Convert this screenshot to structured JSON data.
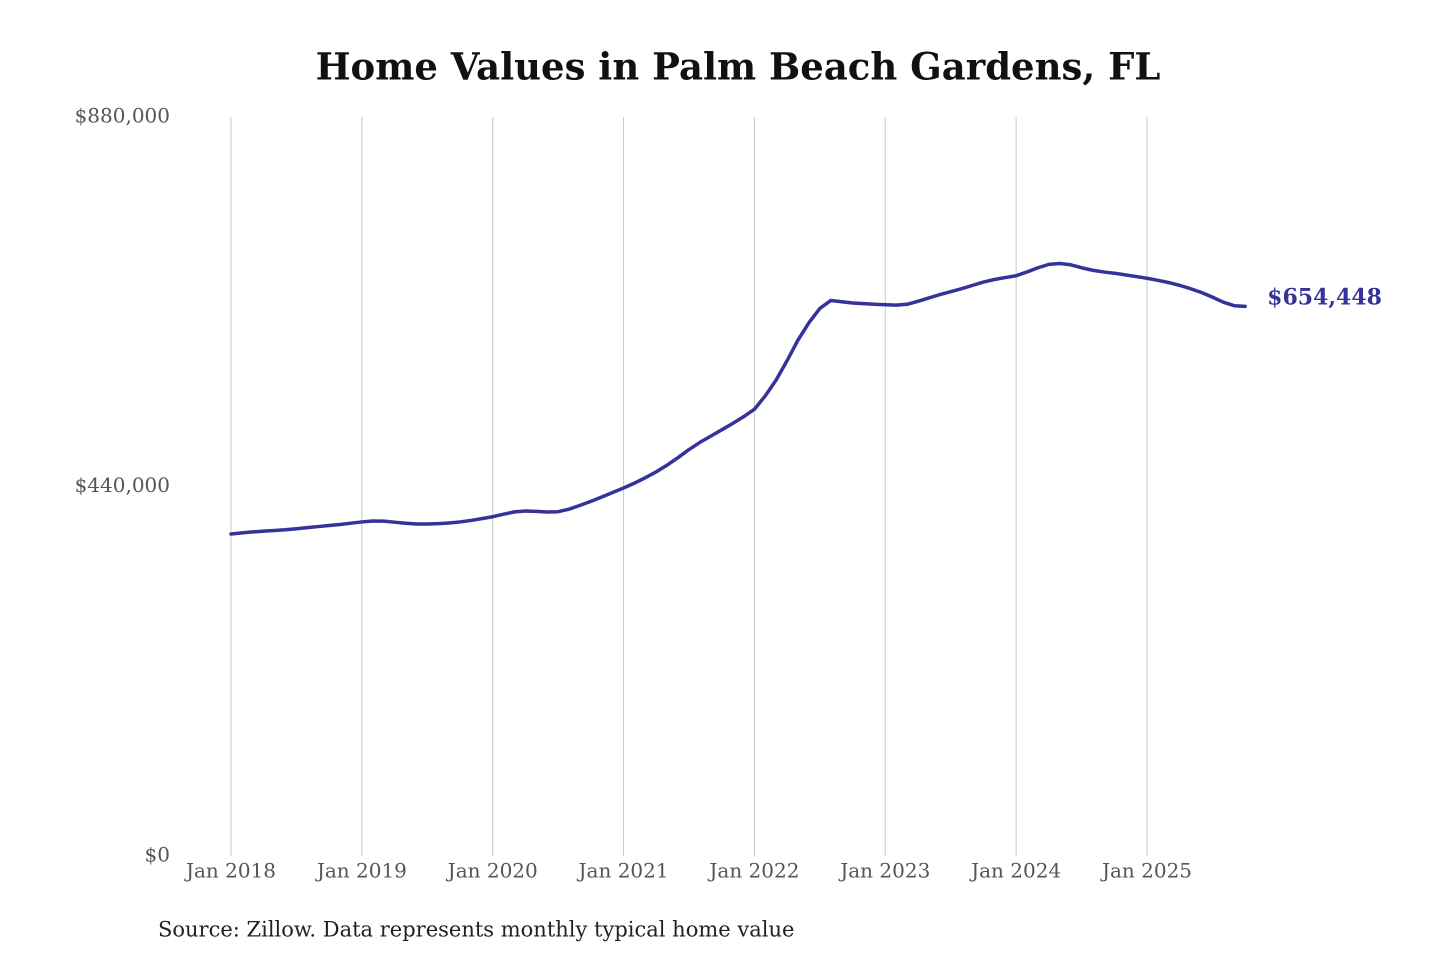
{
  "chart_data": {
    "type": "line",
    "title": "Home Values in Palm Beach Gardens, FL",
    "source": "Source: Zillow. Data represents monthly typical home value",
    "color": "#35339a",
    "end_label": "$654,448",
    "x": [
      "2018-01",
      "2018-02",
      "2018-03",
      "2018-04",
      "2018-05",
      "2018-06",
      "2018-07",
      "2018-08",
      "2018-09",
      "2018-10",
      "2018-11",
      "2018-12",
      "2019-01",
      "2019-02",
      "2019-03",
      "2019-04",
      "2019-05",
      "2019-06",
      "2019-07",
      "2019-08",
      "2019-09",
      "2019-10",
      "2019-11",
      "2019-12",
      "2020-01",
      "2020-02",
      "2020-03",
      "2020-04",
      "2020-05",
      "2020-06",
      "2020-07",
      "2020-08",
      "2020-09",
      "2020-10",
      "2020-11",
      "2020-12",
      "2021-01",
      "2021-02",
      "2021-03",
      "2021-04",
      "2021-05",
      "2021-06",
      "2021-07",
      "2021-08",
      "2021-09",
      "2021-10",
      "2021-11",
      "2021-12",
      "2022-01",
      "2022-02",
      "2022-03",
      "2022-04",
      "2022-05",
      "2022-06",
      "2022-07",
      "2022-08",
      "2022-09",
      "2022-10",
      "2022-11",
      "2022-12",
      "2023-01",
      "2023-02",
      "2023-03",
      "2023-04",
      "2023-05",
      "2023-06",
      "2023-07",
      "2023-08",
      "2023-09",
      "2023-10",
      "2023-11",
      "2023-12",
      "2024-01",
      "2024-02",
      "2024-03",
      "2024-04",
      "2024-05",
      "2024-06",
      "2024-07",
      "2024-08",
      "2024-09",
      "2024-10",
      "2024-11",
      "2024-12",
      "2025-01",
      "2025-02",
      "2025-03",
      "2025-04",
      "2025-05",
      "2025-06",
      "2025-07",
      "2025-08",
      "2025-09",
      "2025-10"
    ],
    "values": [
      383400,
      384800,
      385900,
      386800,
      387600,
      388500,
      389700,
      391000,
      392300,
      393500,
      394700,
      396300,
      397800,
      398900,
      398700,
      397500,
      396200,
      395400,
      395300,
      395800,
      396600,
      397800,
      399600,
      401700,
      404000,
      407000,
      409800,
      410800,
      410400,
      409600,
      410000,
      413000,
      417500,
      422300,
      427500,
      432800,
      438200,
      444000,
      450500,
      457500,
      465500,
      474500,
      484000,
      492500,
      500000,
      507500,
      515000,
      523000,
      532000,
      548000,
      567000,
      590000,
      614500,
      635000,
      652000,
      661500,
      660000,
      658500,
      657800,
      657000,
      656500,
      656000,
      657000,
      660500,
      664500,
      668500,
      672000,
      675500,
      679500,
      683500,
      686500,
      688800,
      691000,
      695500,
      700500,
      704500,
      705500,
      704000,
      700500,
      697500,
      695500,
      694000,
      692000,
      690000,
      688000,
      685500,
      682800,
      679500,
      675500,
      671000,
      665500,
      659500,
      655300,
      654448
    ],
    "ylim": [
      0,
      880000
    ],
    "yticks": [
      {
        "value": 0,
        "label": "$0"
      },
      {
        "value": 440000,
        "label": "$440,000"
      },
      {
        "value": 880000,
        "label": "$880,000"
      }
    ],
    "xticks": [
      {
        "value": "2018-01",
        "label": "Jan 2018"
      },
      {
        "value": "2019-01",
        "label": "Jan 2019"
      },
      {
        "value": "2020-01",
        "label": "Jan 2020"
      },
      {
        "value": "2021-01",
        "label": "Jan 2021"
      },
      {
        "value": "2022-01",
        "label": "Jan 2022"
      },
      {
        "value": "2023-01",
        "label": "Jan 2023"
      },
      {
        "value": "2024-01",
        "label": "Jan 2024"
      },
      {
        "value": "2025-01",
        "label": "Jan 2025"
      }
    ],
    "grid": "x"
  }
}
